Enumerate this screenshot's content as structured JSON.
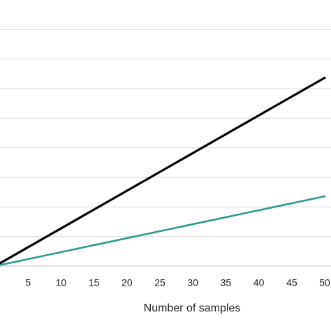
{
  "chart_data": {
    "type": "line",
    "xlabel": "Number of samples",
    "x": [
      0,
      50
    ],
    "series": [
      {
        "name": null,
        "color": "#000000",
        "values": [
          0,
          6.37
        ]
      },
      {
        "name": null,
        "color": "#2e9a8f",
        "values": [
          0,
          2.36
        ]
      }
    ],
    "xlim": [
      0.74,
      50.95
    ],
    "xticks": [
      5,
      10,
      15,
      20,
      25,
      30,
      35,
      40,
      45,
      50
    ],
    "ylim": [
      0,
      9
    ],
    "yticks": [
      1,
      2,
      3,
      4,
      5,
      6,
      7,
      8
    ],
    "grid": true
  }
}
